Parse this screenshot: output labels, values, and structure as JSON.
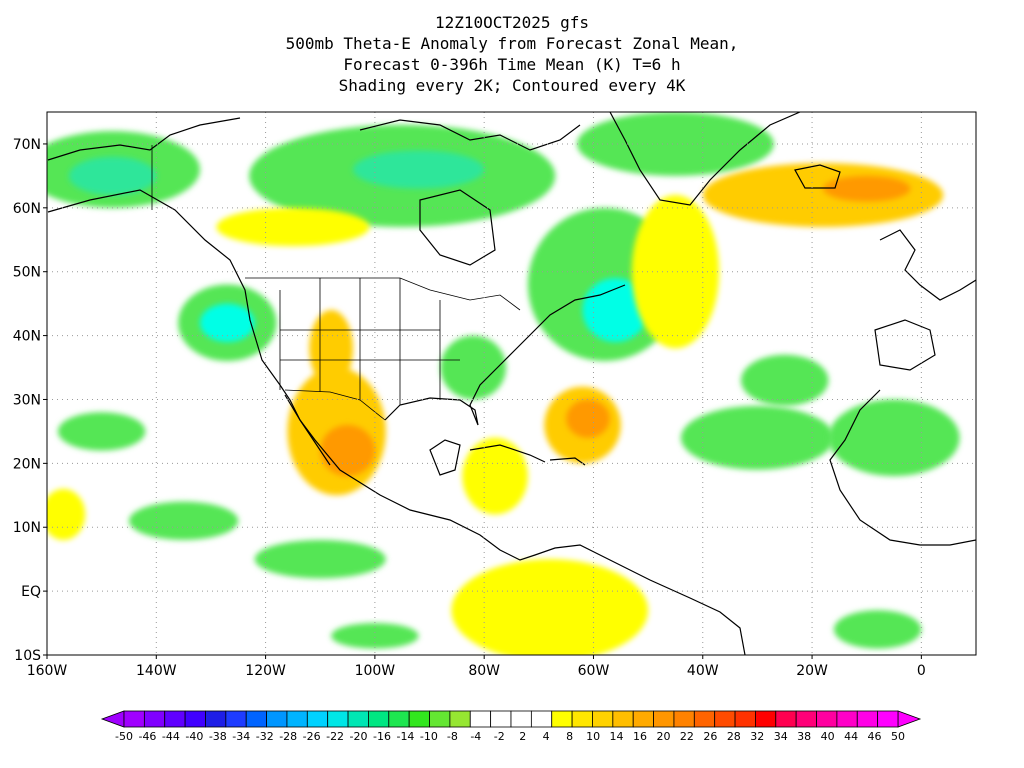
{
  "title": {
    "line1": "12Z10OCT2025 gfs",
    "line2": "500mb Theta-E Anomaly from Forecast Zonal Mean,",
    "line3": "Forecast 0-396h Time Mean (K) T=6 h",
    "line4": "Shading every 2K; Contoured every 4K"
  },
  "map": {
    "lon_range": [
      -160,
      10
    ],
    "lat_range": [
      -10,
      75
    ],
    "lat_ticks": [
      {
        "lat": 70,
        "label": "70N"
      },
      {
        "lat": 60,
        "label": "60N"
      },
      {
        "lat": 50,
        "label": "50N"
      },
      {
        "lat": 40,
        "label": "40N"
      },
      {
        "lat": 30,
        "label": "30N"
      },
      {
        "lat": 20,
        "label": "20N"
      },
      {
        "lat": 10,
        "label": "10N"
      },
      {
        "lat": 0,
        "label": "EQ"
      },
      {
        "lat": -10,
        "label": "10S"
      }
    ],
    "lon_ticks": [
      {
        "lon": -160,
        "label": "160W"
      },
      {
        "lon": -140,
        "label": "140W"
      },
      {
        "lon": -120,
        "label": "120W"
      },
      {
        "lon": -100,
        "label": "100W"
      },
      {
        "lon": -80,
        "label": "80W"
      },
      {
        "lon": -60,
        "label": "60W"
      },
      {
        "lon": -40,
        "label": "40W"
      },
      {
        "lon": -20,
        "label": "20W"
      },
      {
        "lon": 0,
        "label": "0"
      }
    ],
    "anomaly_blobs": [
      {
        "name": "alaska-cold",
        "lon": -148,
        "lat": 66,
        "rx": 16,
        "ry": 6,
        "color": "#55e655"
      },
      {
        "name": "alaska-cold-core",
        "lon": -148,
        "lat": 65,
        "rx": 8,
        "ry": 3,
        "color": "#2ee69a"
      },
      {
        "name": "canada-arctic-cold",
        "lon": -95,
        "lat": 65,
        "rx": 28,
        "ry": 8,
        "color": "#55e655"
      },
      {
        "name": "canada-arctic-core",
        "lon": -92,
        "lat": 66,
        "rx": 12,
        "ry": 3,
        "color": "#2ee69a"
      },
      {
        "name": "greenland-cold",
        "lon": -45,
        "lat": 70,
        "rx": 18,
        "ry": 5,
        "color": "#55e655"
      },
      {
        "name": "labrador-sea-cold",
        "lon": -58,
        "lat": 48,
        "rx": 14,
        "ry": 12,
        "color": "#55e655"
      },
      {
        "name": "labrador-core",
        "lon": -56,
        "lat": 44,
        "rx": 6,
        "ry": 5,
        "color": "#00ffe6"
      },
      {
        "name": "pacific-nw-cold",
        "lon": -127,
        "lat": 42,
        "rx": 9,
        "ry": 6,
        "color": "#55e655"
      },
      {
        "name": "pacific-nw-core",
        "lon": -127,
        "lat": 42,
        "rx": 5,
        "ry": 3,
        "color": "#00ffe6"
      },
      {
        "name": "southeast-us-cold",
        "lon": -82,
        "lat": 35,
        "rx": 6,
        "ry": 5,
        "color": "#55e655"
      },
      {
        "name": "mid-atlantic-cold",
        "lon": -30,
        "lat": 24,
        "rx": 14,
        "ry": 5,
        "color": "#55e655"
      },
      {
        "name": "subtrop-atl-cold",
        "lon": -25,
        "lat": 33,
        "rx": 8,
        "ry": 4,
        "color": "#55e655"
      },
      {
        "name": "nafrica-cold",
        "lon": -5,
        "lat": 24,
        "rx": 12,
        "ry": 6,
        "color": "#55e655"
      },
      {
        "name": "pacific-itcz-cold",
        "lon": -135,
        "lat": 11,
        "rx": 10,
        "ry": 3,
        "color": "#55e655"
      },
      {
        "name": "epac-cold",
        "lon": -110,
        "lat": 5,
        "rx": 12,
        "ry": 3,
        "color": "#55e655"
      },
      {
        "name": "west-pac-cold",
        "lon": -150,
        "lat": 25,
        "rx": 8,
        "ry": 3,
        "color": "#55e655"
      },
      {
        "name": "south-pac-cold",
        "lon": -100,
        "lat": -7,
        "rx": 8,
        "ry": 2,
        "color": "#55e655"
      },
      {
        "name": "south-atl-cold",
        "lon": -8,
        "lat": -6,
        "rx": 8,
        "ry": 3,
        "color": "#55e655"
      },
      {
        "name": "mexico-warm",
        "lon": -107,
        "lat": 25,
        "rx": 9,
        "ry": 10,
        "color": "#ffcc00"
      },
      {
        "name": "mexico-warm-core",
        "lon": -105,
        "lat": 22,
        "rx": 5,
        "ry": 4,
        "color": "#ff9900"
      },
      {
        "name": "sw-us-warm",
        "lon": -108,
        "lat": 38,
        "rx": 4,
        "ry": 6,
        "color": "#ffcc00"
      },
      {
        "name": "atlantic-warm",
        "lon": -62,
        "lat": 26,
        "rx": 7,
        "ry": 6,
        "color": "#ffcc00"
      },
      {
        "name": "atlantic-warm-core",
        "lon": -61,
        "lat": 27,
        "rx": 4,
        "ry": 3,
        "color": "#ff9900"
      },
      {
        "name": "iceland-warm",
        "lon": -18,
        "lat": 62,
        "rx": 22,
        "ry": 5,
        "color": "#ffcc00"
      },
      {
        "name": "iceland-warm-core",
        "lon": -10,
        "lat": 63,
        "rx": 8,
        "ry": 2,
        "color": "#ff9900"
      },
      {
        "name": "south-america-warm",
        "lon": -68,
        "lat": -3,
        "rx": 18,
        "ry": 8,
        "color": "#ffff00"
      },
      {
        "name": "canada-warm-band",
        "lon": -115,
        "lat": 57,
        "rx": 14,
        "ry": 3,
        "color": "#ffff00"
      },
      {
        "name": "caribbean-warm",
        "lon": -78,
        "lat": 18,
        "rx": 6,
        "ry": 6,
        "color": "#ffff00"
      },
      {
        "name": "mid-atl-warm-band",
        "lon": -45,
        "lat": 50,
        "rx": 8,
        "ry": 12,
        "color": "#ffff00"
      },
      {
        "name": "east-pac-warm",
        "lon": -157,
        "lat": 12,
        "rx": 4,
        "ry": 4,
        "color": "#ffff00"
      }
    ],
    "colors": {
      "ocean": "#ffffff",
      "grid": "#9a9a9a",
      "coast": "#000000"
    }
  },
  "colorbar": {
    "colors": [
      "#a000ff",
      "#8000ff",
      "#6000ff",
      "#4000ff",
      "#1e1ee6",
      "#1e3cff",
      "#0064ff",
      "#0096ff",
      "#00b4ff",
      "#00d2ff",
      "#00e6e6",
      "#00e6b4",
      "#00e682",
      "#1ee650",
      "#32e61e",
      "#64e632",
      "#96e632",
      "#ffffff",
      "#ffffff",
      "#ffffff",
      "#ffffff",
      "#ffff00",
      "#ffe600",
      "#ffd200",
      "#ffbe00",
      "#ffaa00",
      "#ff9600",
      "#ff8200",
      "#ff6400",
      "#ff4b00",
      "#ff3200",
      "#ff0000",
      "#ff0050",
      "#ff0078",
      "#ff00a0",
      "#ff00c8",
      "#ff00e6",
      "#ff00ff"
    ],
    "labels": [
      "-50",
      "-46",
      "-44",
      "-40",
      "-38",
      "-34",
      "-32",
      "-28",
      "-26",
      "-22",
      "-20",
      "-16",
      "-14",
      "-10",
      "-8",
      "-4",
      "-2",
      "2",
      "4",
      "8",
      "10",
      "14",
      "16",
      "20",
      "22",
      "26",
      "28",
      "32",
      "34",
      "38",
      "40",
      "44",
      "46",
      "50"
    ]
  }
}
